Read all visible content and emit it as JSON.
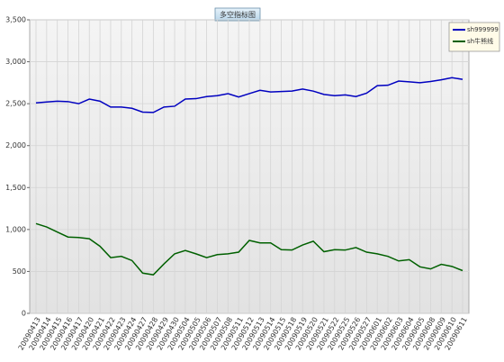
{
  "chart_data": {
    "type": "line",
    "title": "多空指标图",
    "categories": [
      "20090413",
      "20090414",
      "20090415",
      "20090416",
      "20090417",
      "20090420",
      "20090421",
      "20090422",
      "20090423",
      "20090424",
      "20090427",
      "20090428",
      "20090429",
      "20090430",
      "20090504",
      "20090505",
      "20090506",
      "20090507",
      "20090508",
      "20090511",
      "20090512",
      "20090513",
      "20090514",
      "20090515",
      "20090518",
      "20090519",
      "20090520",
      "20090521",
      "20090522",
      "20090525",
      "20090526",
      "20090527",
      "20090601",
      "20090602",
      "20090603",
      "20090604",
      "20090605",
      "20090608",
      "20090609",
      "20090610",
      "20090611"
    ],
    "series": [
      {
        "name": "sh999999",
        "color": "#0000c0",
        "values": [
          2510,
          2520,
          2530,
          2525,
          2500,
          2555,
          2530,
          2460,
          2460,
          2445,
          2400,
          2395,
          2460,
          2470,
          2555,
          2560,
          2585,
          2595,
          2620,
          2580,
          2620,
          2660,
          2640,
          2645,
          2650,
          2675,
          2650,
          2610,
          2595,
          2605,
          2585,
          2625,
          2715,
          2720,
          2770,
          2760,
          2750,
          2765,
          2785,
          2810,
          2790
        ]
      },
      {
        "name": "sh牛熊线",
        "color": "#006000",
        "values": [
          1070,
          1030,
          970,
          910,
          905,
          890,
          800,
          665,
          680,
          630,
          480,
          460,
          590,
          710,
          750,
          710,
          665,
          700,
          710,
          730,
          870,
          840,
          840,
          760,
          755,
          815,
          860,
          735,
          760,
          755,
          785,
          730,
          710,
          680,
          625,
          640,
          555,
          530,
          585,
          560,
          510
        ]
      }
    ],
    "ylim": [
      0,
      3500
    ],
    "yticks": [
      0,
      500,
      {
        "value": 1000,
        "label": "1,000"
      },
      {
        "value": 1500,
        "label": "1,500"
      },
      {
        "value": 2000,
        "label": "2,000"
      },
      {
        "value": 2500,
        "label": "2,500"
      },
      {
        "value": 3000,
        "label": "3,000"
      },
      {
        "value": 3500,
        "label": "3,500"
      }
    ],
    "grid": true
  }
}
